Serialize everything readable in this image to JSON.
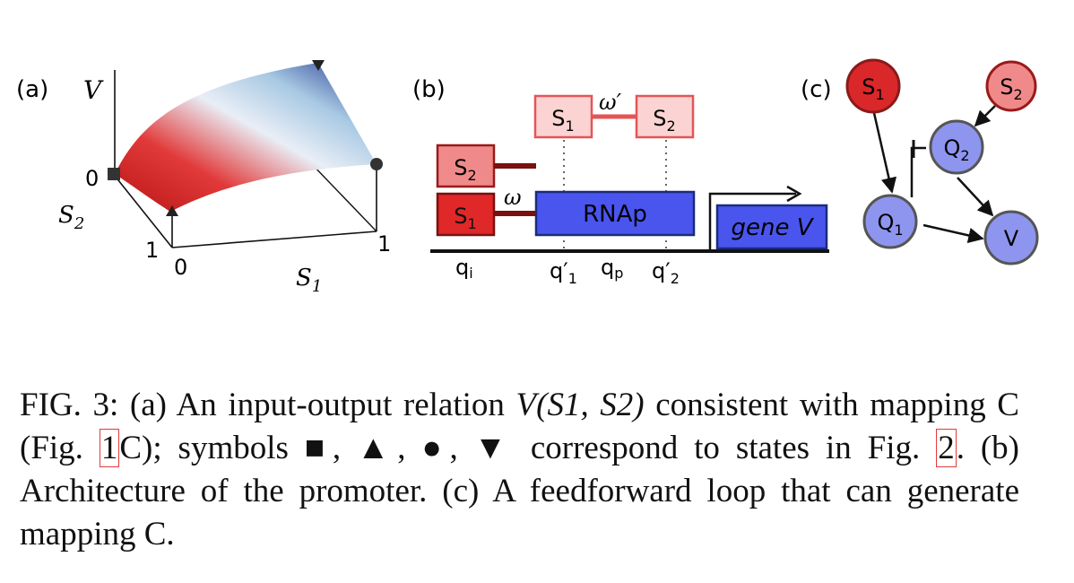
{
  "panel_a": {
    "label": "(a)",
    "v_axis": "V",
    "s2_axis": "S",
    "s2_sub": "2",
    "s1_axis": "S",
    "s1_sub": "1",
    "tick_0_left": "0",
    "tick_1_s2": "1",
    "tick_0_s1": "0",
    "tick_1_s1": "1"
  },
  "panel_b": {
    "label": "(b)",
    "s1": "S",
    "s1_sub": "1",
    "s2": "S",
    "s2_sub": "2",
    "s1_top": "S",
    "s1_top_sub": "1",
    "s2_top": "S",
    "s2_top_sub": "2",
    "omega": "ω",
    "omega_prime": "ω′",
    "rnap": "RNAp",
    "gene": "gene V",
    "q_i": "q",
    "q_i_sub": "i",
    "q1p": "q′",
    "q1p_sub": "1",
    "q_p": "q",
    "q_p_sub": "p",
    "q2p": "q′",
    "q2p_sub": "2"
  },
  "panel_c": {
    "label": "(c)",
    "nodes": {
      "s1": "S",
      "s1_sub": "1",
      "s2": "S",
      "s2_sub": "2",
      "q1": "Q",
      "q1_sub": "1",
      "q2": "Q",
      "q2_sub": "2",
      "v": "V"
    }
  },
  "caption": {
    "fig": "FIG. 3:",
    "a_intro": "(a) An input-output relation",
    "relation": "V(S1, S2)",
    "after_relation": "consistent with mapping C (Fig.",
    "ref1": "1",
    "after_ref1": "C); symbols ■, ▲, ●, ▼ correspond to states in Fig.",
    "ref2": "2",
    "after_ref2": ". (b) Architecture of the promoter. (c) A feedforward loop that can generate mapping C."
  },
  "colors": {
    "red_dark": "#d9272a",
    "red_light": "#f08a8a",
    "red_pale": "#fbd3d3",
    "blue": "#4a55ee",
    "blue_node": "#8e95ef",
    "navy": "#1a2c7a"
  }
}
